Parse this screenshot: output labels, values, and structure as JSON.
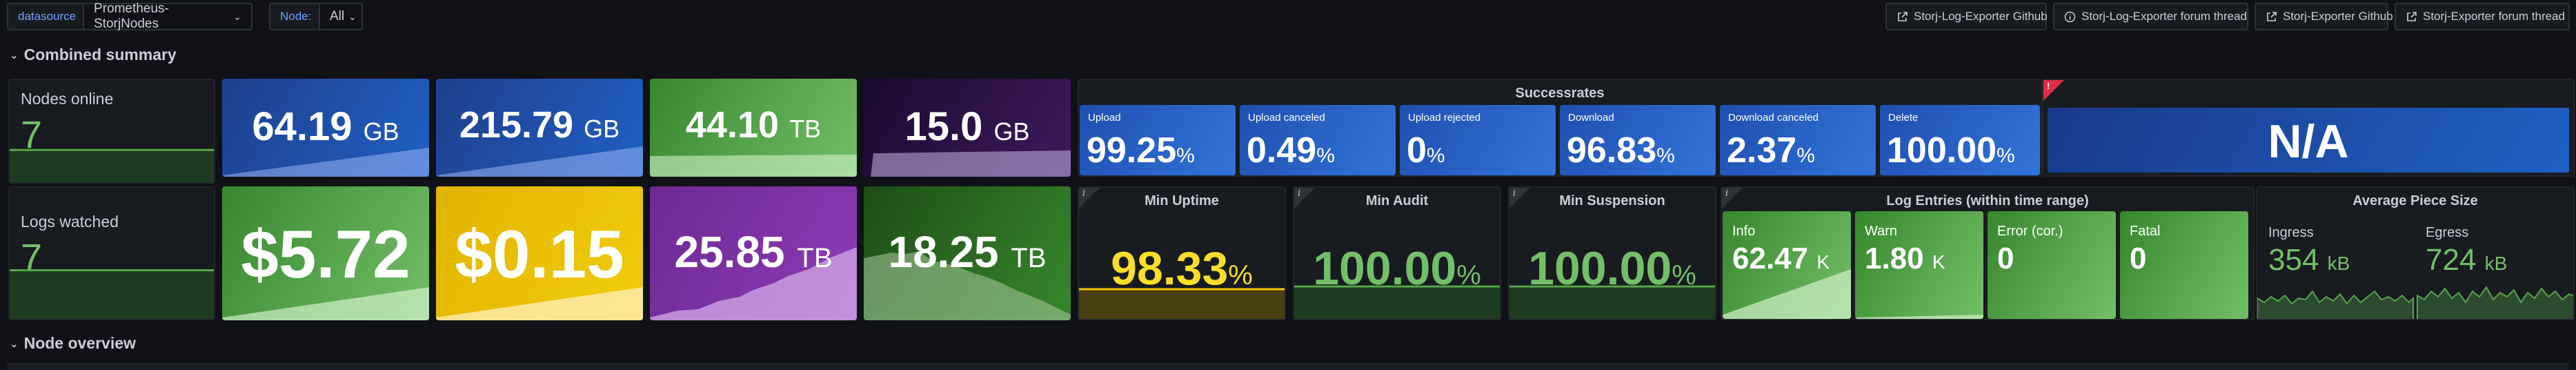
{
  "toolbar": {
    "datasource_label": "datasource",
    "datasource_value": "Prometheus-StorjNodes",
    "node_label": "Node:",
    "node_value": "All",
    "links": [
      "Storj-Log-Exporter Github",
      "Storj-Log-Exporter forum thread",
      "Storj-Exporter Github",
      "Storj-Exporter forum thread"
    ]
  },
  "rows": {
    "combined_summary": "Combined summary",
    "node_overview": "Node overview"
  },
  "summary": {
    "nodes_online": {
      "title": "Nodes online",
      "value": "7"
    },
    "logs_watched": {
      "title": "Logs watched",
      "value": "7"
    },
    "stat1": {
      "value": "64.19",
      "unit": "GB",
      "color": "#1f60c4"
    },
    "stat2": {
      "value": "215.79",
      "unit": "GB",
      "color": "#1f60c4"
    },
    "stat3": {
      "value": "44.10",
      "unit": "TB",
      "color": "#56a64b"
    },
    "stat4": {
      "value": "15.0",
      "unit": "GB",
      "color": "#2f0f45"
    },
    "stat5": {
      "value": "$5.72",
      "color": "#56a64b"
    },
    "stat6": {
      "value": "$0.15",
      "color": "#f2cc0c"
    },
    "stat7": {
      "value": "25.85",
      "unit": "TB",
      "color": "#8f3bb8"
    },
    "stat8": {
      "value": "18.25",
      "unit": "TB",
      "color": "#37872d"
    }
  },
  "successrates": {
    "title": "Successrates",
    "items": [
      {
        "label": "Upload",
        "value": "99.25",
        "unit": "%"
      },
      {
        "label": "Upload canceled",
        "value": "0.49",
        "unit": "%"
      },
      {
        "label": "Upload rejected",
        "value": "0",
        "unit": "%"
      },
      {
        "label": "Download",
        "value": "96.83",
        "unit": "%"
      },
      {
        "label": "Download canceled",
        "value": "2.37",
        "unit": "%"
      },
      {
        "label": "Delete",
        "value": "100.00",
        "unit": "%"
      }
    ]
  },
  "na_panel": {
    "value": "N/A",
    "warn": "!"
  },
  "min_uptime": {
    "title": "Min Uptime",
    "value": "98.33",
    "unit": "%",
    "color": "#fade2a"
  },
  "min_audit": {
    "title": "Min Audit",
    "value": "100.00",
    "unit": "%",
    "color": "#73bf69"
  },
  "min_suspension": {
    "title": "Min Suspension",
    "value": "100.00",
    "unit": "%",
    "color": "#73bf69"
  },
  "log_entries": {
    "title": "Log Entries (within time range)",
    "items": [
      {
        "label": "Info",
        "value": "62.47",
        "unit": "K"
      },
      {
        "label": "Warn",
        "value": "1.80",
        "unit": "K"
      },
      {
        "label": "Error (cor.)",
        "value": "0",
        "unit": ""
      },
      {
        "label": "Fatal",
        "value": "0",
        "unit": ""
      }
    ]
  },
  "avg_piece": {
    "title": "Average Piece Size",
    "ingress_label": "Ingress",
    "ingress_value": "354",
    "ingress_unit": "kB",
    "egress_label": "Egress",
    "egress_value": "724",
    "egress_unit": "kB"
  },
  "info_glyph": "i"
}
